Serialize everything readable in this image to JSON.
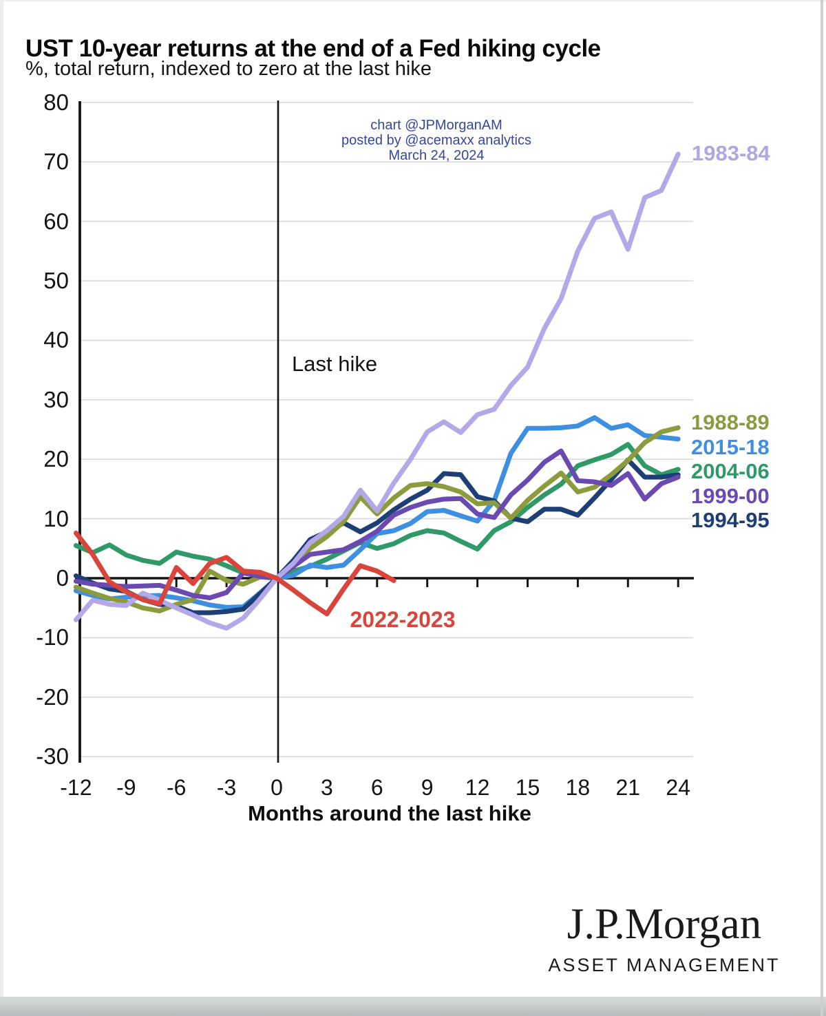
{
  "header": {
    "title": "UST 10-year returns at the end of a Fed hiking cycle",
    "subtitle": "%, total return, indexed to zero at the last hike"
  },
  "annotation": {
    "line1": "chart @JPMorganAM",
    "line2": "posted by @acemaxx analytics",
    "line3": "March 24, 2024",
    "color": "#35479e"
  },
  "chart_data": {
    "type": "line",
    "title": "UST 10-year returns at the end of a Fed hiking cycle",
    "xlabel": "Months around the last hike",
    "ylabel": "%, total return, indexed to zero at the last hike",
    "xlim": [
      -12.7,
      24.9
    ],
    "ylim": [
      -32,
      80
    ],
    "x_ticks": [
      -12,
      -9,
      -6,
      -3,
      0,
      3,
      6,
      9,
      12,
      15,
      18,
      21,
      24
    ],
    "y_ticks": [
      80,
      70,
      60,
      50,
      40,
      30,
      20,
      10,
      0,
      -10,
      -20,
      -30
    ],
    "grid": "horizontal",
    "vertical_marker_x": 0,
    "vertical_marker_label": "Last hike",
    "x": [
      -12,
      -11,
      -10,
      -9,
      -8,
      -7,
      -6,
      -5,
      -4,
      -3,
      -2,
      -1,
      0,
      1,
      2,
      3,
      4,
      5,
      6,
      7,
      8,
      9,
      10,
      11,
      12,
      13,
      14,
      15,
      16,
      17,
      18,
      19,
      20,
      21,
      22,
      23,
      24
    ],
    "series": [
      {
        "name": "2004-06",
        "color": "#2f9a67",
        "values": [
          5.5,
          4.3,
          5.6,
          3.9,
          3.0,
          2.5,
          4.4,
          3.7,
          3.2,
          2.1,
          0.9,
          0.5,
          0,
          1.2,
          2.0,
          3.2,
          4.6,
          6.0,
          5.0,
          5.8,
          7.2,
          8.0,
          7.6,
          6.2,
          4.9,
          8.0,
          9.5,
          11.9,
          14.0,
          15.8,
          18.9,
          19.9,
          20.8,
          22.5,
          18.9,
          17.4,
          18.3
        ]
      },
      {
        "name": "2015-18",
        "color": "#3e8fdf",
        "values": [
          -2.1,
          -2.9,
          -3.5,
          -3.2,
          -3.0,
          -2.9,
          -3.3,
          -3.8,
          -4.5,
          -4.9,
          -4.8,
          -2.5,
          0,
          0.5,
          2.2,
          1.8,
          2.2,
          4.8,
          7.5,
          8.0,
          9.2,
          11.2,
          11.4,
          10.5,
          9.6,
          13.0,
          21.0,
          25.2,
          25.2,
          25.3,
          25.6,
          27.0,
          25.2,
          25.8,
          24.0,
          23.7,
          23.4
        ]
      },
      {
        "name": "1994-95",
        "color": "#1e3e76",
        "values": [
          0.4,
          -0.8,
          -1.8,
          -2.2,
          -3.6,
          -4.4,
          -4.7,
          -5.8,
          -5.8,
          -5.6,
          -5.2,
          -2.6,
          0,
          3.0,
          6.5,
          7.8,
          9.3,
          7.8,
          9.3,
          11.5,
          13.3,
          14.8,
          17.6,
          17.4,
          13.7,
          13.0,
          10.1,
          9.5,
          11.6,
          11.6,
          10.6,
          13.5,
          16.6,
          19.9,
          17.0,
          17.0,
          17.4
        ]
      },
      {
        "name": "1988-89",
        "color": "#8b9b3e",
        "values": [
          -1.5,
          -2.5,
          -3.4,
          -4.0,
          -5.0,
          -5.5,
          -4.4,
          -3.6,
          1.2,
          -0.4,
          -1.0,
          0.2,
          0,
          2.2,
          5.0,
          7.0,
          9.5,
          13.7,
          10.8,
          13.5,
          15.6,
          15.9,
          15.4,
          14.5,
          12.5,
          12.7,
          10.1,
          13.1,
          15.5,
          17.7,
          14.5,
          15.3,
          17.4,
          19.8,
          22.8,
          24.6,
          25.3
        ]
      },
      {
        "name": "1999-00",
        "color": "#6a4ab0",
        "values": [
          -0.5,
          -1.0,
          -1.2,
          -1.4,
          -1.3,
          -1.2,
          -2.0,
          -2.9,
          -3.3,
          -2.4,
          0.9,
          0.3,
          0,
          2.0,
          4.0,
          4.4,
          4.8,
          6.2,
          7.9,
          10.6,
          11.9,
          12.8,
          13.3,
          13.4,
          10.8,
          10.2,
          14.0,
          16.5,
          19.5,
          21.4,
          16.4,
          16.2,
          15.6,
          17.6,
          13.3,
          15.9,
          17.0
        ]
      },
      {
        "name": "1983-84",
        "color": "#b4a8e8",
        "values": [
          -7.0,
          -3.7,
          -4.4,
          -4.6,
          -2.5,
          -3.7,
          -5.0,
          -6.2,
          -7.5,
          -8.4,
          -6.7,
          -3.5,
          0,
          2.5,
          6.0,
          8.0,
          10.4,
          14.8,
          11.3,
          16.0,
          20.0,
          24.6,
          26.3,
          24.5,
          27.5,
          28.4,
          32.4,
          35.5,
          42.0,
          47.0,
          55.0,
          60.5,
          61.6,
          55.3,
          64.0,
          65.2,
          71.3
        ]
      },
      {
        "name": "2022-2023",
        "color": "#d9453a",
        "values": [
          7.6,
          4.0,
          -0.6,
          -2.3,
          -3.6,
          -4.3,
          1.8,
          -0.9,
          2.5,
          3.5,
          1.2,
          1.0,
          0,
          -2.0,
          -4.1,
          -6.0,
          -1.8,
          2.1,
          1.2,
          -0.4,
          null,
          null,
          null,
          null,
          null,
          null,
          null,
          null,
          null,
          null,
          null,
          null,
          null,
          null,
          null,
          null,
          null
        ]
      }
    ],
    "legend_position": "right-of-line-ends"
  },
  "labels": {
    "last_hike": "Last hike",
    "series_1983": "1983-84",
    "series_red": "2022-2023"
  },
  "legend": {
    "right_stack": [
      {
        "label": "1988-89",
        "color": "#8b9b3e"
      },
      {
        "label": "2015-18",
        "color": "#3e8fdf"
      },
      {
        "label": "2004-06",
        "color": "#2f9a67"
      },
      {
        "label": "1999-00",
        "color": "#6a4ab0"
      },
      {
        "label": "1994-95",
        "color": "#1e3e76"
      }
    ]
  },
  "footer": {
    "brand": "J.P.Morgan",
    "brand_sub": "ASSET MANAGEMENT"
  }
}
